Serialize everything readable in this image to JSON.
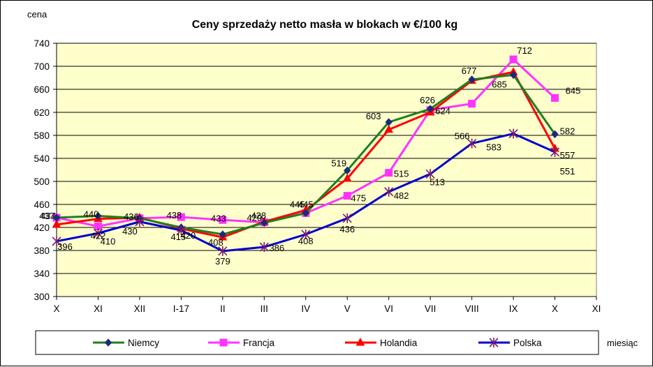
{
  "chart_data": {
    "type": "line",
    "title": "Ceny sprzedaży netto masła w blokach w €/100 kg",
    "ylabel": "cena",
    "xlabel": "miesiąc",
    "categories": [
      "X",
      "XI",
      "XII",
      "I-17",
      "II",
      "III",
      "IV",
      "V",
      "VI",
      "VII",
      "VIII",
      "IX",
      "X",
      "XI"
    ],
    "ylim": [
      300,
      740
    ],
    "yticks": [
      300,
      340,
      380,
      420,
      460,
      500,
      540,
      580,
      620,
      660,
      700,
      740
    ],
    "grid": true,
    "legend": "bottom",
    "colors": {
      "plot_background": "#ffffcc",
      "Niemcy": "#1e7f1e",
      "Niemcy_marker": "#1a2a7a",
      "Francja": "#ff33ff",
      "Holandia": "#ff0000",
      "Polska": "#0000cc",
      "Polska_marker": "#7a1a6a"
    },
    "series": [
      {
        "name": "Niemcy",
        "values": [
          437,
          440,
          436,
          420,
          408,
          428,
          445,
          519,
          603,
          626,
          677,
          685,
          582,
          null
        ],
        "labels": [
          "437",
          "440",
          "436",
          "420",
          "408",
          "428",
          "445",
          "519",
          "603",
          "626",
          "677",
          "685",
          "582",
          ""
        ],
        "marker": "diamond"
      },
      {
        "name": "Francja",
        "values": [
          437,
          422,
          436,
          438,
          433,
          429,
          445,
          475,
          515,
          624,
          635,
          712,
          645,
          null
        ],
        "labels": [
          "437",
          "422",
          "",
          "438",
          "433",
          "429",
          "445",
          "475",
          "515",
          "624",
          "",
          "712",
          "645",
          ""
        ],
        "marker": "square"
      },
      {
        "name": "Holandia",
        "values": [
          425,
          435,
          437,
          418,
          403,
          430,
          450,
          505,
          590,
          620,
          675,
          690,
          557,
          null
        ],
        "labels": [
          "",
          "",
          "",
          "",
          "",
          "",
          "",
          "",
          "",
          "",
          "",
          "",
          "557",
          ""
        ],
        "marker": "triangle"
      },
      {
        "name": "Polska",
        "values": [
          396,
          410,
          430,
          415,
          379,
          386,
          408,
          436,
          482,
          513,
          566,
          583,
          551,
          null
        ],
        "labels": [
          "396",
          "410",
          "430",
          "415",
          "379",
          "386",
          "408",
          "436",
          "482",
          "513",
          "566",
          "583",
          "551",
          ""
        ],
        "marker": "star"
      }
    ]
  }
}
